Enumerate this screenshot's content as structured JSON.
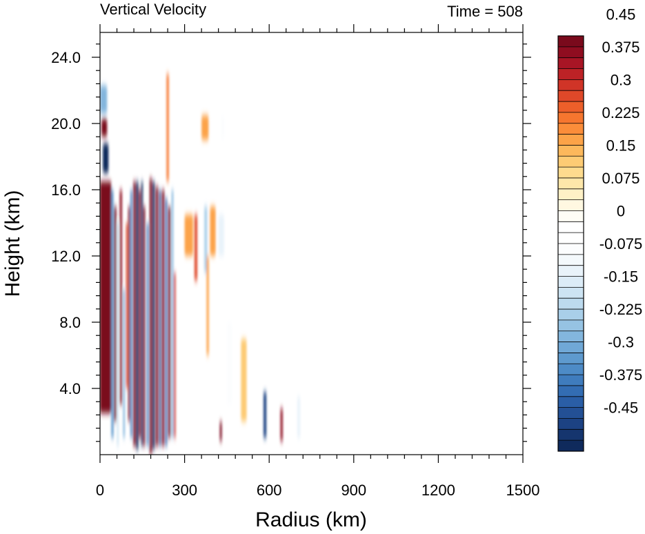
{
  "chart_data": {
    "type": "heatmap",
    "title_left": "Vertical Velocity",
    "title_right": "Time = 508",
    "xlabel": "Radius (km)",
    "ylabel": "Height (km)",
    "xlim": [
      0,
      1500
    ],
    "ylim": [
      0,
      25.5
    ],
    "x_ticks": [
      "0",
      "300",
      "600",
      "900",
      "1200",
      "1500"
    ],
    "x_tick_values": [
      0,
      300,
      600,
      900,
      1200,
      1500
    ],
    "y_ticks": [
      "4.0",
      "8.0",
      "12.0",
      "16.0",
      "20.0",
      "24.0"
    ],
    "y_tick_values": [
      4,
      8,
      12,
      16,
      20,
      24
    ],
    "colorbar": {
      "levels_min": -0.525,
      "levels_step": 0.025,
      "labels": [
        "0.45",
        "0.375",
        "0.3",
        "0.225",
        "0.15",
        "0.075",
        "0",
        "-0.075",
        "-0.15",
        "-0.225",
        "-0.3",
        "-0.375",
        "-0.45"
      ],
      "label_values": [
        0.45,
        0.375,
        0.3,
        0.225,
        0.15,
        0.075,
        0,
        -0.075,
        -0.15,
        -0.225,
        -0.3,
        -0.375,
        -0.45
      ],
      "colors": [
        "#0f2a5c",
        "#15356e",
        "#1c4283",
        "#235095",
        "#2a5ea6",
        "#336db3",
        "#3f7cbd",
        "#4d8bc6",
        "#5e9ace",
        "#70a8d6",
        "#83b6dd",
        "#96c3e3",
        "#a9cfe9",
        "#bcdaee",
        "#cde4f3",
        "#dcecf7",
        "#e9f3fa",
        "#f4f9fc",
        "#fcfdfe",
        "#ffffff",
        "#ffffff",
        "#fffdf5",
        "#fff8e1",
        "#fff1c6",
        "#fee7aa",
        "#fedb8e",
        "#fdcb74",
        "#fcb85c",
        "#fca348",
        "#fb8d3a",
        "#f6762f",
        "#ec5f2a",
        "#df4829",
        "#d03427",
        "#bd2226",
        "#a81525",
        "#8f0d20",
        "#7a0a1c"
      ]
    },
    "features": [
      {
        "r0": 0,
        "r1": 40,
        "z0": 2.5,
        "z1": 16.5,
        "w": 0.55
      },
      {
        "r0": 10,
        "r1": 30,
        "z0": 17.0,
        "z1": 18.8,
        "w": -0.6
      },
      {
        "r0": 5,
        "r1": 25,
        "z0": 19.2,
        "z1": 20.3,
        "w": 0.4
      },
      {
        "r0": 0,
        "r1": 25,
        "z0": 20.6,
        "z1": 22.3,
        "w": -0.3
      },
      {
        "r0": 40,
        "r1": 48,
        "z0": 1.0,
        "z1": 16.0,
        "w": -0.35
      },
      {
        "r0": 50,
        "r1": 58,
        "z0": 2.0,
        "z1": 15.0,
        "w": 0.45
      },
      {
        "r0": 60,
        "r1": 66,
        "z0": 0.5,
        "z1": 14.0,
        "w": -0.2
      },
      {
        "r0": 70,
        "r1": 78,
        "z0": 3.0,
        "z1": 16.0,
        "w": 0.35
      },
      {
        "r0": 82,
        "r1": 88,
        "z0": 1.0,
        "z1": 10.0,
        "w": -0.3
      },
      {
        "r0": 92,
        "r1": 98,
        "z0": 4.0,
        "z1": 14.0,
        "w": 0.25
      },
      {
        "r0": 100,
        "r1": 106,
        "z0": 2.0,
        "z1": 15.0,
        "w": 0.55
      },
      {
        "r0": 108,
        "r1": 114,
        "z0": 1.0,
        "z1": 16.0,
        "w": -0.4
      },
      {
        "r0": 118,
        "r1": 126,
        "z0": 0.5,
        "z1": 16.5,
        "w": 0.55
      },
      {
        "r0": 128,
        "r1": 136,
        "z0": 0.3,
        "z1": 16.5,
        "w": -0.55
      },
      {
        "r0": 138,
        "r1": 144,
        "z0": 1.0,
        "z1": 16.0,
        "w": 0.5
      },
      {
        "r0": 146,
        "r1": 152,
        "z0": 0.5,
        "z1": 16.5,
        "w": -0.55
      },
      {
        "r0": 154,
        "r1": 160,
        "z0": 0.5,
        "z1": 15.0,
        "w": 0.45
      },
      {
        "r0": 166,
        "r1": 172,
        "z0": 0.5,
        "z1": 14.0,
        "w": -0.4
      },
      {
        "r0": 176,
        "r1": 184,
        "z0": 0.0,
        "z1": 16.7,
        "w": 0.55
      },
      {
        "r0": 186,
        "r1": 194,
        "z0": 0.3,
        "z1": 16.5,
        "w": -0.55
      },
      {
        "r0": 198,
        "r1": 206,
        "z0": 0.5,
        "z1": 16.2,
        "w": 0.55
      },
      {
        "r0": 210,
        "r1": 216,
        "z0": 0.5,
        "z1": 16.0,
        "w": -0.5
      },
      {
        "r0": 220,
        "r1": 228,
        "z0": 0.5,
        "z1": 16.0,
        "w": 0.55
      },
      {
        "r0": 232,
        "r1": 238,
        "z0": 0.5,
        "z1": 15.5,
        "w": -0.45
      },
      {
        "r0": 242,
        "r1": 250,
        "z0": 1.0,
        "z1": 15.0,
        "w": 0.5
      },
      {
        "r0": 254,
        "r1": 260,
        "z0": 1.0,
        "z1": 16.0,
        "w": -0.3
      },
      {
        "r0": 262,
        "r1": 268,
        "z0": 1.0,
        "z1": 11.0,
        "w": 0.3
      },
      {
        "r0": 236,
        "r1": 244,
        "z0": 16.5,
        "z1": 23.0,
        "w": 0.2
      },
      {
        "r0": 300,
        "r1": 330,
        "z0": 12.0,
        "z1": 14.5,
        "w": 0.15
      },
      {
        "r0": 335,
        "r1": 345,
        "z0": 10.5,
        "z1": 14.5,
        "w": 0.25
      },
      {
        "r0": 370,
        "r1": 380,
        "z0": 11.0,
        "z1": 15.0,
        "w": -0.25
      },
      {
        "r0": 378,
        "r1": 386,
        "z0": 6.0,
        "z1": 12.0,
        "w": 0.15
      },
      {
        "r0": 390,
        "r1": 410,
        "z0": 12.0,
        "z1": 15.0,
        "w": 0.15
      },
      {
        "r0": 420,
        "r1": 440,
        "z0": 12.0,
        "z1": 14.5,
        "w": -0.15
      },
      {
        "r0": 360,
        "r1": 385,
        "z0": 19.0,
        "z1": 20.5,
        "w": 0.15
      },
      {
        "r0": 430,
        "r1": 440,
        "z0": 19.0,
        "z1": 20.5,
        "w": -0.1
      },
      {
        "r0": 425,
        "r1": 432,
        "z0": 0.8,
        "z1": 2.0,
        "w": 0.45
      },
      {
        "r0": 580,
        "r1": 590,
        "z0": 1.0,
        "z1": 3.8,
        "w": -0.5
      },
      {
        "r0": 640,
        "r1": 648,
        "z0": 0.8,
        "z1": 2.8,
        "w": 0.35
      },
      {
        "r0": 700,
        "r1": 710,
        "z0": 1.0,
        "z1": 3.5,
        "w": -0.15
      },
      {
        "r0": 450,
        "r1": 470,
        "z0": 3.0,
        "z1": 8.0,
        "w": -0.1
      },
      {
        "r0": 500,
        "r1": 520,
        "z0": 2.0,
        "z1": 7.0,
        "w": 0.1
      }
    ]
  }
}
